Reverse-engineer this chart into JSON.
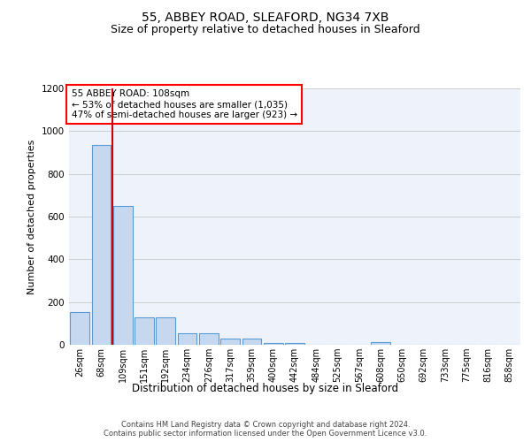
{
  "title1": "55, ABBEY ROAD, SLEAFORD, NG34 7XB",
  "title2": "Size of property relative to detached houses in Sleaford",
  "xlabel": "Distribution of detached houses by size in Sleaford",
  "ylabel": "Number of detached properties",
  "footer1": "Contains HM Land Registry data © Crown copyright and database right 2024.",
  "footer2": "Contains public sector information licensed under the Open Government Licence v3.0.",
  "annotation_line1": "55 ABBEY ROAD: 108sqm",
  "annotation_line2": "← 53% of detached houses are smaller (1,035)",
  "annotation_line3": "47% of semi-detached houses are larger (923) →",
  "bar_labels": [
    "26sqm",
    "68sqm",
    "109sqm",
    "151sqm",
    "192sqm",
    "234sqm",
    "276sqm",
    "317sqm",
    "359sqm",
    "400sqm",
    "442sqm",
    "484sqm",
    "525sqm",
    "567sqm",
    "608sqm",
    "650sqm",
    "692sqm",
    "733sqm",
    "775sqm",
    "816sqm",
    "858sqm"
  ],
  "bar_values": [
    155,
    935,
    650,
    130,
    130,
    55,
    55,
    30,
    30,
    10,
    10,
    0,
    0,
    0,
    12,
    0,
    0,
    0,
    0,
    0,
    0
  ],
  "bar_color": "#c5d8f0",
  "bar_edge_color": "#5b9bd5",
  "marker_color": "#cc0000",
  "ylim_max": 1200,
  "yticks": [
    0,
    200,
    400,
    600,
    800,
    1000,
    1200
  ],
  "background_color": "#eef2fb",
  "grid_color": "#c8c8c8",
  "title1_fontsize": 10,
  "title2_fontsize": 9,
  "xlabel_fontsize": 8.5,
  "ylabel_fontsize": 8,
  "tick_fontsize": 7,
  "annotation_fontsize": 7.5,
  "footer_fontsize": 6
}
